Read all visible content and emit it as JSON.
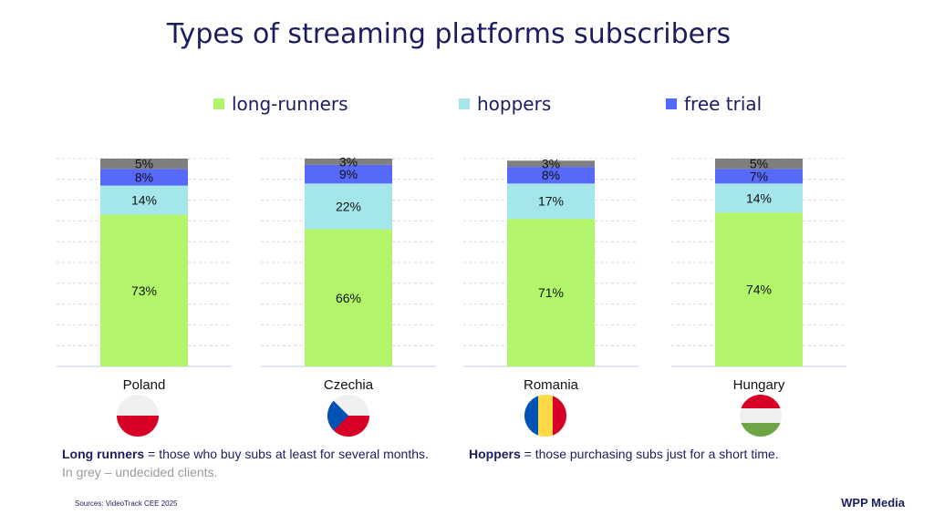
{
  "title": "Types of streaming platforms subscribers",
  "legend": [
    {
      "label": "long-runners",
      "color": "#b2f56b"
    },
    {
      "label": "hoppers",
      "color": "#a4e6ea"
    },
    {
      "label": "free trial",
      "color": "#5769f8"
    }
  ],
  "chart_data": {
    "type": "bar",
    "stacked": true,
    "title": "Types of streaming platforms subscribers",
    "categories": [
      "Poland",
      "Czechia",
      "Romania",
      "Hungary"
    ],
    "series": [
      {
        "name": "long-runners",
        "color": "#b2f56b",
        "values": [
          73,
          66,
          71,
          74
        ],
        "labels": [
          "73%",
          "66%",
          "71%",
          "74%"
        ]
      },
      {
        "name": "hoppers",
        "color": "#a4e6ea",
        "values": [
          14,
          22,
          17,
          14
        ],
        "labels": [
          "14%",
          "22%",
          "17%",
          "14%"
        ]
      },
      {
        "name": "free trial",
        "color": "#5769f8",
        "values": [
          8,
          9,
          8,
          7
        ],
        "labels": [
          "8%",
          "9%",
          "8%",
          "7%"
        ]
      },
      {
        "name": "",
        "color": "#7f7f7f",
        "values": [
          5,
          3,
          3,
          5
        ],
        "labels": [
          "5%",
          "3%",
          "3%",
          "5%"
        ]
      }
    ],
    "ylim": [
      0,
      100
    ],
    "grid": true,
    "legend_position": "top"
  },
  "countries": [
    {
      "name": "Poland",
      "flag": "poland-flag-icon"
    },
    {
      "name": "Czechia",
      "flag": "czechia-flag-icon"
    },
    {
      "name": "Romania",
      "flag": "romania-flag-icon"
    },
    {
      "name": "Hungary",
      "flag": "hungary-flag-icon"
    }
  ],
  "notes": {
    "long_runners_term": "Long runners",
    "long_runners_def": " = those who buy subs at least for several months.",
    "hoppers_term": "Hoppers",
    "hoppers_def": " = those purchasing subs just for a short time.",
    "grey": "In grey  – undecided clients."
  },
  "sources": "Sources: VideoTrack  CEE 2025",
  "logo": "WPP Media"
}
